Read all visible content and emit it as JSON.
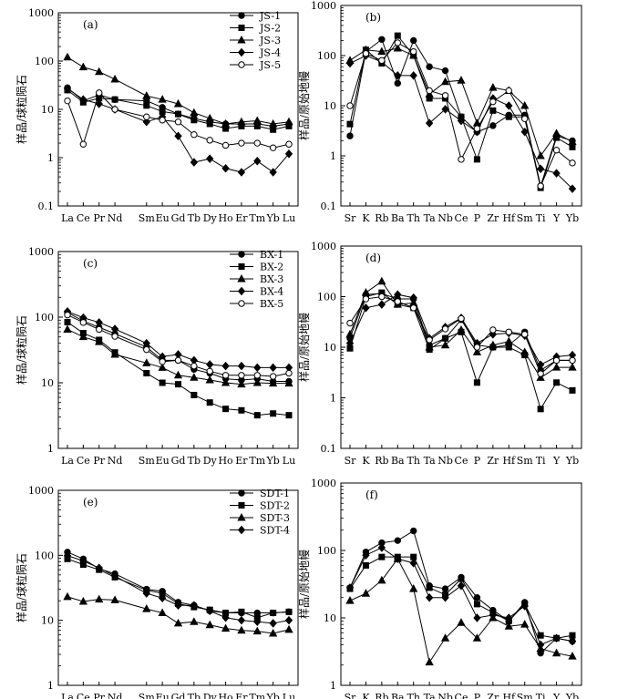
{
  "chart_data": [
    {
      "id": "a",
      "panel_label": "(a)",
      "type": "line",
      "yscale": "log",
      "ylabel": "样品/球粒陨石",
      "ylim": [
        0.1,
        1000
      ],
      "yticks": [
        "0.1",
        "1",
        "10",
        "100",
        "1000"
      ],
      "categories": [
        "La",
        "Ce",
        "Pr",
        "Nd",
        "Sm",
        "Eu",
        "Gd",
        "Tb",
        "Dy",
        "Ho",
        "Er",
        "Tm",
        "Yb",
        "Lu"
      ],
      "x_slots": [
        0,
        1,
        2,
        3,
        5,
        6,
        7,
        8,
        9,
        10,
        11,
        12,
        13,
        14
      ],
      "legend_position": "top-right",
      "series": [
        {
          "name": "JS-1",
          "marker": "circle-filled",
          "values": [
            28,
            15,
            20,
            16,
            15,
            11,
            8,
            6.5,
            5.5,
            5,
            5,
            5,
            4.5,
            5
          ]
        },
        {
          "name": "JS-2",
          "marker": "square-filled",
          "values": [
            25,
            14,
            17,
            16,
            12,
            9,
            8,
            6,
            5,
            4,
            4.5,
            4.5,
            3.8,
            4.5
          ]
        },
        {
          "name": "JS-3",
          "marker": "triangle-filled",
          "values": [
            120,
            75,
            60,
            42,
            19,
            16,
            13,
            8.5,
            6.5,
            5,
            5.5,
            5.8,
            5,
            5.5
          ]
        },
        {
          "name": "JS-4",
          "marker": "diamond-filled",
          "values": [
            27,
            16,
            13,
            10,
            5.5,
            7,
            2.8,
            0.8,
            0.95,
            0.6,
            0.5,
            0.85,
            0.5,
            1.2
          ]
        },
        {
          "name": "JS-5",
          "marker": "circle-open",
          "values": [
            15,
            1.9,
            22,
            10,
            7,
            6,
            5.5,
            3,
            2.3,
            1.8,
            2,
            2,
            1.6,
            1.9
          ]
        }
      ]
    },
    {
      "id": "b",
      "panel_label": "(b)",
      "type": "line",
      "yscale": "log",
      "ylabel": "样品/原始地幔",
      "ylim": [
        0.1,
        1000
      ],
      "yticks": [
        "0.1",
        "1",
        "10",
        "100",
        "1000"
      ],
      "categories": [
        "Sr",
        "K",
        "Rb",
        "Ba",
        "Th",
        "Ta",
        "Nb",
        "Ce",
        "P",
        "Zr",
        "Hf",
        "Sm",
        "Ti",
        "Y",
        "Yb"
      ],
      "x_slots": [
        0,
        1,
        2,
        3,
        4,
        5,
        6,
        7,
        8,
        9,
        10,
        11,
        12,
        13,
        14
      ],
      "series": [
        {
          "name": "JS-1",
          "marker": "circle-filled",
          "values": [
            2.5,
            120,
            210,
            28,
            200,
            60,
            50,
            6,
            3,
            4,
            6.5,
            6.5,
            0.25,
            2.5,
            2
          ]
        },
        {
          "name": "JS-2",
          "marker": "square-filled",
          "values": [
            4.3,
            130,
            70,
            250,
            100,
            14,
            14,
            6,
            0.85,
            8,
            6,
            6,
            0.23,
            2.3,
            1.5
          ]
        },
        {
          "name": "JS-3",
          "marker": "triangle-filled",
          "values": [
            80,
            130,
            120,
            140,
            100,
            17,
            30,
            32,
            4.5,
            23,
            20,
            10,
            1,
            2.8,
            1.9
          ]
        },
        {
          "name": "JS-4",
          "marker": "diamond-filled",
          "values": [
            70,
            100,
            75,
            40,
            40,
            4.5,
            8.5,
            5,
            3,
            14,
            10,
            3,
            0.55,
            0.45,
            0.22
          ]
        },
        {
          "name": "JS-5",
          "marker": "circle-open",
          "values": [
            10,
            110,
            80,
            180,
            120,
            20,
            16,
            0.85,
            3.5,
            12,
            20,
            5.5,
            0.25,
            1.3,
            0.72
          ]
        }
      ]
    },
    {
      "id": "c",
      "panel_label": "(c)",
      "type": "line",
      "yscale": "log",
      "ylabel": "样品/球粒陨石",
      "ylim": [
        1,
        1000
      ],
      "yticks": [
        "1",
        "10",
        "100",
        "1000"
      ],
      "categories": [
        "La",
        "Ce",
        "Pr",
        "Nd",
        "Sm",
        "Eu",
        "Gd",
        "Tb",
        "Dy",
        "Ho",
        "Er",
        "Tm",
        "Yb",
        "Lu"
      ],
      "x_slots": [
        0,
        1,
        2,
        3,
        5,
        6,
        7,
        8,
        9,
        10,
        11,
        12,
        13,
        14
      ],
      "legend_position": "top-right",
      "series": [
        {
          "name": "BX-1",
          "marker": "circle-filled",
          "values": [
            118,
            87,
            70,
            56,
            35,
            22,
            22,
            16,
            14,
            11.5,
            11,
            11.5,
            10.5,
            10.5
          ]
        },
        {
          "name": "BX-2",
          "marker": "square-filled",
          "values": [
            84,
            57,
            45,
            29,
            14,
            10,
            9.5,
            6.5,
            5,
            4,
            3.8,
            3.2,
            3.4,
            3.2
          ]
        },
        {
          "name": "BX-3",
          "marker": "triangle-filled",
          "values": [
            65,
            50,
            42,
            27,
            20,
            17,
            13,
            12,
            11,
            10,
            9.5,
            10,
            9.8,
            9.8
          ]
        },
        {
          "name": "BX-4",
          "marker": "diamond-filled",
          "values": [
            122,
            98,
            83,
            66,
            40,
            25,
            27,
            22,
            19,
            18,
            18,
            17,
            17,
            17
          ]
        },
        {
          "name": "BX-5",
          "marker": "circle-open",
          "values": [
            108,
            83,
            65,
            51,
            32,
            21,
            22,
            18,
            15,
            13,
            13,
            13,
            12.5,
            14
          ]
        }
      ]
    },
    {
      "id": "d",
      "panel_label": "(d)",
      "type": "line",
      "yscale": "log",
      "ylabel": "样品/原始地幔",
      "ylim": [
        0.1,
        1000
      ],
      "yticks": [
        "0.1",
        "1",
        "10",
        "100",
        "1000"
      ],
      "categories": [
        "Sr",
        "K",
        "Rb",
        "Ba",
        "Th",
        "Ta",
        "Nb",
        "Ce",
        "P",
        "Zr",
        "Hf",
        "Sm",
        "Ti",
        "Y",
        "Yb"
      ],
      "x_slots": [
        0,
        1,
        2,
        3,
        4,
        5,
        6,
        7,
        8,
        9,
        10,
        11,
        12,
        13,
        14
      ],
      "series": [
        {
          "name": "BX-1",
          "marker": "circle-filled",
          "values": [
            15,
            110,
            115,
            90,
            90,
            11,
            15,
            35,
            11,
            10,
            11,
            20,
            3.5,
            5.5,
            5.5
          ]
        },
        {
          "name": "BX-2",
          "marker": "square-filled",
          "values": [
            9.5,
            100,
            120,
            70,
            60,
            9,
            15,
            20,
            2,
            10,
            10,
            7,
            0.6,
            2,
            1.4
          ]
        },
        {
          "name": "BX-3",
          "marker": "triangle-filled",
          "values": [
            18,
            120,
            200,
            70,
            75,
            10,
            11,
            22,
            8,
            11,
            13,
            8,
            2.5,
            4,
            4
          ]
        },
        {
          "name": "BX-4",
          "marker": "diamond-filled",
          "values": [
            12,
            60,
            70,
            110,
            95,
            15,
            25,
            38,
            12,
            18,
            19,
            17,
            4.5,
            6.5,
            7
          ]
        },
        {
          "name": "BX-5",
          "marker": "circle-open",
          "values": [
            30,
            90,
            100,
            80,
            60,
            14,
            23,
            37,
            10,
            22,
            20,
            18,
            3,
            5.5,
            5.5
          ]
        }
      ]
    },
    {
      "id": "e",
      "panel_label": "(e)",
      "type": "line",
      "yscale": "log",
      "ylabel": "样品/球粒陨石",
      "ylim": [
        1,
        1000
      ],
      "yticks": [
        "1",
        "10",
        "100",
        "1000"
      ],
      "categories": [
        "La",
        "Ce",
        "Pr",
        "Nd",
        "Sm",
        "Eu",
        "Gd",
        "Tb",
        "Dy",
        "Ho",
        "Er",
        "Tm",
        "Yb",
        "Lu"
      ],
      "x_slots": [
        0,
        1,
        2,
        3,
        5,
        6,
        7,
        8,
        9,
        10,
        11,
        12,
        13,
        14
      ],
      "legend_position": "top-right",
      "series": [
        {
          "name": "SDT-1",
          "marker": "circle-filled",
          "values": [
            112,
            88,
            62,
            52,
            30,
            28,
            19,
            17,
            14,
            13,
            13,
            13,
            13,
            13.5
          ]
        },
        {
          "name": "SDT-2",
          "marker": "square-filled",
          "values": [
            88,
            72,
            60,
            46,
            29,
            26,
            18,
            16,
            14.5,
            13,
            13.5,
            11,
            13,
            13.5
          ]
        },
        {
          "name": "SDT-3",
          "marker": "triangle-filled",
          "values": [
            23,
            19.5,
            21,
            20.5,
            15,
            13,
            9,
            9.5,
            8.5,
            7.5,
            7,
            6.8,
            6.3,
            7.2
          ]
        },
        {
          "name": "SDT-4",
          "marker": "diamond-filled",
          "values": [
            99,
            82,
            64,
            48,
            26,
            22,
            17,
            17,
            14,
            11,
            10,
            9.5,
            9,
            10
          ]
        }
      ]
    },
    {
      "id": "f",
      "panel_label": "(f)",
      "type": "line",
      "yscale": "log",
      "ylabel": "样品/原始地幔",
      "ylim": [
        1,
        1000
      ],
      "yticks": [
        "1",
        "10",
        "100",
        "1000"
      ],
      "categories": [
        "Sr",
        "K",
        "Rb",
        "Ba",
        "Th",
        "Ta",
        "Nb",
        "Ce",
        "P",
        "Zr",
        "Hf",
        "Sm",
        "Ti",
        "Y",
        "Yb"
      ],
      "x_slots": [
        0,
        1,
        2,
        3,
        4,
        5,
        6,
        7,
        8,
        9,
        10,
        11,
        12,
        13,
        14
      ],
      "series": [
        {
          "name": "SDT-1",
          "marker": "circle-filled",
          "values": [
            28,
            95,
            130,
            140,
            195,
            30,
            27,
            40,
            20,
            13,
            9,
            17,
            3,
            5,
            4.5
          ]
        },
        {
          "name": "SDT-2",
          "marker": "square-filled",
          "values": [
            27,
            60,
            80,
            80,
            80,
            28,
            22,
            38,
            16,
            12,
            9,
            16,
            5.5,
            5,
            5.5
          ]
        },
        {
          "name": "SDT-3",
          "marker": "triangle-filled",
          "values": [
            18,
            23,
            36,
            75,
            27,
            2.2,
            5,
            8.5,
            5,
            10,
            7.5,
            8,
            3.5,
            3,
            2.7
          ]
        },
        {
          "name": "SDT-4",
          "marker": "diamond-filled",
          "values": [
            28,
            85,
            110,
            75,
            65,
            20,
            20,
            30,
            10,
            11,
            10,
            15,
            4,
            5,
            4.5
          ]
        }
      ]
    }
  ]
}
